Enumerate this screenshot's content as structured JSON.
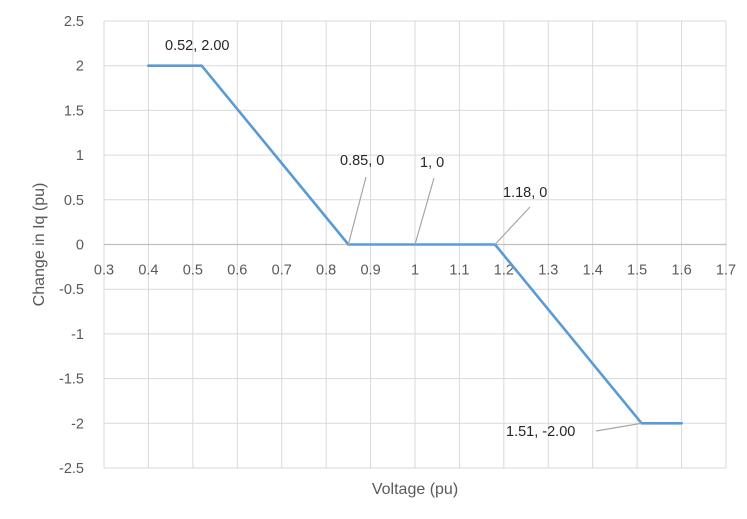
{
  "chart_data": {
    "type": "line",
    "title": "",
    "xlabel": "Voltage (pu)",
    "ylabel": "Change in Iq (pu)",
    "xlim": [
      0.3,
      1.7
    ],
    "ylim": [
      -2.5,
      2.5
    ],
    "x_ticks": [
      "0.3",
      "0.4",
      "0.5",
      "0.6",
      "0.7",
      "0.8",
      "0.9",
      "1",
      "1.1",
      "1.2",
      "1.3",
      "1.4",
      "1.5",
      "1.6",
      "1.7"
    ],
    "y_ticks": [
      "2.5",
      "2",
      "1.5",
      "1",
      "0.5",
      "0",
      "-0.5",
      "-1",
      "-1.5",
      "-2",
      "-2.5"
    ],
    "grid": true,
    "series": [
      {
        "color": "#5b9bd5",
        "x": [
          0.4,
          0.52,
          0.85,
          1.0,
          1.18,
          1.51,
          1.6
        ],
        "y": [
          2.0,
          2.0,
          0.0,
          0.0,
          0.0,
          -2.0,
          -2.0
        ]
      }
    ],
    "annotations": [
      {
        "text": "0.52, 2.00",
        "x": 0.52,
        "y": 2.0
      },
      {
        "text": "0.85, 0",
        "x": 0.85,
        "y": 0.0
      },
      {
        "text": "1, 0",
        "x": 1.0,
        "y": 0.0
      },
      {
        "text": "1.18, 0",
        "x": 1.18,
        "y": 0.0
      },
      {
        "text": "1.51, -2.00",
        "x": 1.51,
        "y": -2.0
      }
    ]
  }
}
